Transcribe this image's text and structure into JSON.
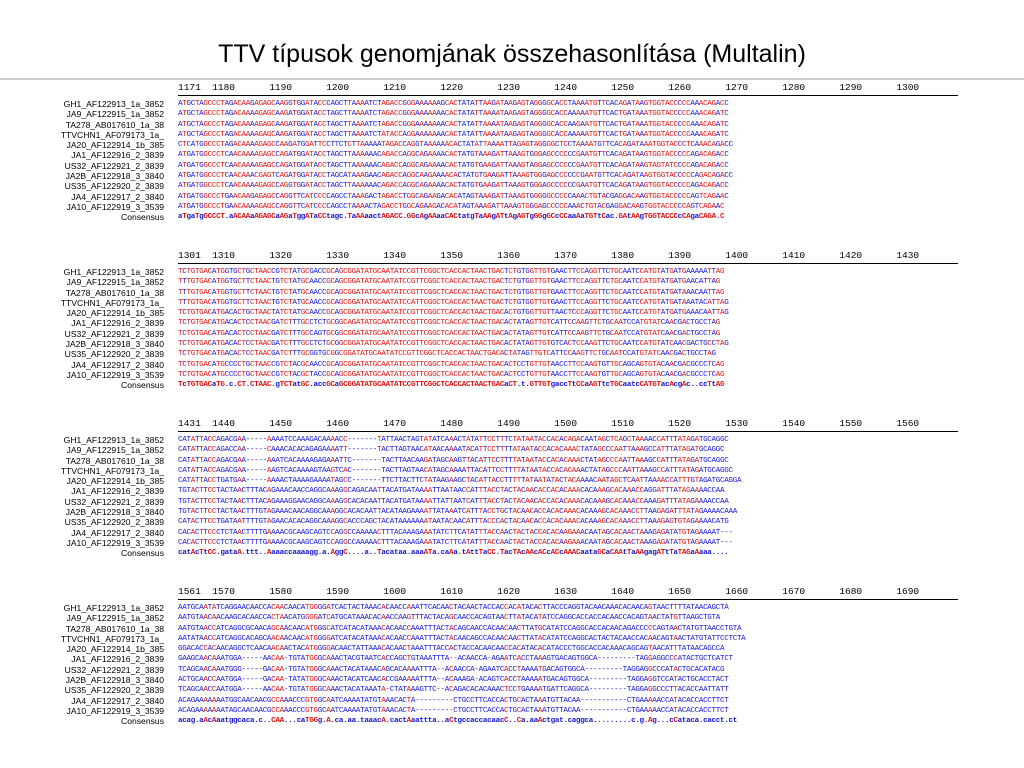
{
  "title": "TTV típusok genomjának összehasonlítása (Multalin)",
  "colors": {
    "consensus_high": "#e01010",
    "consensus_low": "#1515d6",
    "text": "#000000"
  },
  "sequence_names": [
    "GH1_AF122913_1a_3852",
    "JA9_AF122915_1a_3852",
    "TA278_AB017610_1a_38",
    "TTVCHN1_AF079173_1a_",
    "JA20_AF122914_1b_385",
    "JA1_AF122916_2_3839",
    "US32_AF122921_2_3839",
    "JA2B_AF122918_3_3840",
    "US35_AF122920_2_3839",
    "JA4_AF122917_2_3840",
    "JA10_AF122919_3_3539",
    "Consensus"
  ],
  "blocks": [
    {
      "numbers": "1171  1180      1190      1200      1210      1220      1230      1240      1250      1260      1270      1280      1290      1300",
      "rows": [
        "ATGCTAGCCCTAGACAAGAGAGCAAGGTGGATACCCAGCTTAAAATCTAGACCGGGAAAAAAGCACTATATTAAGATAAGAGTAGGGGCACCTAAAATGTTCACAGATAAGTGGTACCCCCAAACAGACC",
        "ATGCTAGCCCTAGACAAAAGAGCAAGATGGATACCTAGCTTAAAATCTAGACCGGGAAAAAAACACTATATTAAAATAAGAGTAGGGGCACCAAAAATGTTCACTGATAAATGGTACCCCCAAACAGATC",
        "ATGCTAGCCCTAGACAAAAGAGCAAGATGGATACCTAGCTTAAAATCTAGACCGGGAAAAAAACACTATATTAAAATAAGAGTAGGGGCACCAAGAATGTTCACTGATAAATGGTACCCCCAAACAGATC",
        "ATGCTAGCCCTAGACAAAAGAGCAAGATGGATACCTAGCTTAAAATCTATACCAGGAAAAAAACACTATATTAAAATAAGAGTAGGGGCACCAAAAATGTTCACTGATAAATGGTACCCCCAAACAGATC",
        "CTCATGGCCCTAGACAAAAGAGCCAAGATGGATTCCTTCTCTTAAAAATAGACCAGGTAAAAAACACTATATTAAAATTAGAGTAGGGGCTCCTAAAATGTTCACAGATAAATGGTACCCTCAAACAGACC",
        "ATGATGGCCCTCAACAAAAGAGCCAGATGGATACCTAGCTTAAAAAACAGACCAGGCAGAAAACACTATGTAAAGATTAAAGTGGGAGCCCCCCGAATGTTCACAGATAAGTGGTACCCCCAGACAGACC",
        "ATGATGGCCCTCAACAAAAGAGCCAGATGGATACCTAGCTTAAAAAACAGACCAGGCAGAAAACACTATGTGAAGATTAAAGTAGGAGCCCCCCGAATGTTCACAGATAAGTAGTATCCCCAGACAGACC",
        "ATGATGGCCCTCAACAAACGAGTCAGATGGATACCTAGCATAAAGAACAGACCAGGCAAGAAAACACTATGTGAAGATTAAAGTGGGAGCCCCCCGAATGTTCACAGATAAGTGGTACCCCCAGACAGACC",
        "ATGATGGCCCTCAACAAAAGAGCCAGGTGGATACCTAGCTTAAAAAACAGACCAGGCAGAAAACACTATGTGAAGATTAAAGTGGGAGCCCCCCGAATGTTCACAGATAAGTGGTACCCCCAGACAGACC",
        "ATGATGGCCCTGAACAAGAGAGCCAGGTTCATCCCCAGCCTAAAGACTAGACCTGGCAGAAGACACATAGTAAAGATTAAAGTGGGGGCCCCCAAACTGTACGAGGACAAGTGGTACCCCCAGTCAGAAC",
        "ATGATGGCCCTGAACAAAAGAGCCAGGTTCATCCCCAGCCTAAAACTAGACCTGGCAGAAGACACATAGTAAAGATTAAAGTGGGAGCCCCCAAACTGTACGAGGACAAGTGGTACCCCCAGTCAGAAC",
        "aTgaTgGCCCT.aACAAaAGAGCaAGaTggATaCCtagc.TaAAaactAGACC.GGcAgAAaaCACtatgTaAAgATtAgAGTgGGgGCcCCaaAaTGTtCac.GAtAAgTGGTACCCcCAgaCAGA.C"
      ]
    },
    {
      "numbers": "1301  1310      1320      1330      1340      1350      1360      1370      1380      1390      1400      1410      1420      1430",
      "rows": [
        "TCTGTGACATGGTGCTGCTAACCGTCTATGCGACCGCAGCGGATATGCAATATCCGTTCGGCTCACCACTAACTGACTCTGTGGTTGTGAACTTCCAGGTTCTGCAATCCATGTATGATGAAAAATTAG",
        "TTTGTGACATGGTGCTTCTAACTGTCTATGCAACCGCAGCGGATATGCAATATCCGTTCGGCTCACCACTAACTGACTCTGTGGTTGTGAACTTCCAGGTTCTGCAATCCATGTATGATGAACATTAG",
        "TTTGTGACATGGTGCTTCTAACTGTCTATGCAACCGCAGCGGATATGCAATATCCGTTCGGCTCACCACTAACTGACTCTGTGGTTGTGAACTTCCAGGTTCTGCAATCCATGTATGATAAACAATTAG",
        "TTTGTGACATGGTGCTTCTAACTGTCTATGCAACCGCAGCGGATATGCAATATCCATTCGGCTCACCACTAACTGACTCTGTGGTTGTGAACTTCCAGGTTCTGCAATCCATGTATGATAAATACATTAG",
        "TCTGTGACATGACACTGCTAACTATCTATGCAACCGCAGCGGATATGCAATATCCGTTCGGCTCACCACTAACTGACACTGTGGTTGTTAACTCCCAGGTTCTGCAATCCATGTATGATGAAACAATTAG",
        "TCTGTGACATGACACTCCTAACGATCTTTGCCTCTGCGGCAGATATGCAATATCCGTTCGGCTCACCACTAACTGACACTATAGTTGTCATTCCAAGTTCTGCAATCCATGTATCAACGACTGCCTAG",
        "TCTGTGACATGACACTCCTAACGATCTTTGCCAGTGCGGCGGATATGCAATATCCGTTCGGCTCACCACTAACTGACACTATAGTTGTCATTCCAAGTTCTGCAATCCATGTATCAACGACTGCCTAG",
        "TCTGTGACATGACACTCCTAACGATCTTTGCCTCTGCGGCGGATATGCAATATCCGTTCGGCTCACCACTAACTGACACTATAGTTGTGTCACTCCAAGTTCTGCAATCCATGTATCAACGACTGCCTAG",
        "TCTGTGACATGACACTCCTAACGATCTTTGCGGTGCGGCGGATATGCAATATCCGTTCGGCTCACCACTAACTGACACTATAGTTGTCATTCCAAGTTCTGCAATCCATGTATCAACGACTGCCTAG",
        "TCTGTGACATGCCCCTGCTAACCGTCTACGCAACCGCAGCGGATATGCAATATCCGTTCGGCTCACCACTAACTGACACTCCTGTTGTAACCTTCCAAGTGTTGCAGCAGTGTACAACGACGCCCTCAG",
        "TCTGTGACATGCCCCTGCTAACCGTCTACGCTACCGCAGCGGATATGCAATATCCGTTCGGCTCACCACTAACTGACACTCCTGTTGTAACCTTCCAAGTGTTGCAGCAGTGTACAACGACGCCCTCAG",
        "TcTGTGACaTG.c.CT.CTAAC.gTCTatGC.accGCaGCGGATATGCAATATCCGTTCGGCTCACCACTAACTGACaCT.t.GTTGTgaccTtCCaAGTtcTGCaatcCATGTacAcgAc..ccTtAG"
      ]
    },
    {
      "numbers": "1431  1440      1450      1460      1470      1480      1490      1500      1510      1520      1530      1540      1550      1560",
      "rows": [
        "CATATTACCAGACGAA-----AAAATCCAAAGACAAAACC-------TATTAACTAGTATATCAAACTATATTCCTTTCTATAATACCACACAGACAATAGCTCAGCTAAAACCATTTATAGATGCAGGC",
        "CATATTACCAGACCAA-----CAAACACACAGAGAAAATT-------TACTTAGTAACATAACAAAATACATTCCTTTTATAATACCACACAAACTATAGCCCAATTAAAGCCATTTATAGATGCAGGC",
        "CATATTACCAGACGAA-----AAATCACAAAAGAGAAATTC-------TACTTAACAAGATAGCAAGTTACATTCCTTTTATAATACCACACAAACTATAGCCCAATTAAAGCCATTTATAGATGCAGGC",
        "CATATTACCAGACGAA-----AAGTCACAAAAGTAAGTCAC-------TACTTAGTAACATAGCAAAATTACATTCCTTTTATAATACCACACAAACTATAGCCCAATTAAAGCCATTTATAGATGCAGGC",
        "CATATTACCTGATGAA-----AAAACTAAAAGAAAATAGCC-------TTCTTACTTCTATAAGAAGCTACATTACCTTTTTATAATATACTACAAAACAATAGCTCAATTAAAACCATTTGTAGATGCAGGA",
        "TGTACTTCCTACTAACTTTACAGAAACAACCAGGCAAAGGCAGACAATTACATGATAAAATTAATAACCATTTACCTACTACAACACCACACAAACACAAAGCACAAACCAGGATTTATAGAAAACCAA",
        "TGTACTTCCTACTAACTTTACAGAAAGGAACAGGCAAAGGCACACAATTACATGATAAAATTATTAATCATTTACCTACTACAACACCACACAAACACAAAGCACAAACCAAAGATTTATAGAAAACCAA",
        "TGTACTTCCTACTAACTTTGTAGAAACAACAGGCAAAGGCACACAATTACATAAGAAAATTATAAATCATTTACCTGCTACAACACCACACAAACACAAAGCACAAACCTTAAGAGATTTATAGAAAACAAA",
        "CATACTTCCTGATAATTTTGTAGAACACACAGGCAAAGGCACCCAGCTACATAAAAAAATAATACAACATTTACCCACTACAACACCACACAAACACAAAGCACAAACCTTAAAGAGTGTAGAAAACATG",
        "CACACTTCCCTCTAACTTTTGAAAACGCAAGCAGTCCAGGCCAAAAACTTTACAAAGAAATATCTTCATATTTACCAACTACTACCACACAAGAAACAATAGCACAACTAAAGAGATATGTAGAAAAT---",
        "CACACTTCCCTCTAACTTTTGAAAACGCAAGCAGTCCAGGCCAAAAACTTTACAAAGAAATATCTTCATATTTACCAACTACTACCACACAAGAAACAATAGCACAACTAAAGAGATATGTAGAAAAT---",
        "catAcTtCC.gataA.ttt..Aaaaccaaaagg.a.AggC....a..Tacataa.aaaATa.caAa.tAttTaCC.TacTAcAAcACcACcAAACaataGCaCAAtTaAAgagATtTaTAGaAaaa...."
      ]
    },
    {
      "numbers": "1561  1570      1580      1590      1600      1610      1620      1630      1640      1650      1660      1670      1680      1690",
      "rows": [
        "AATGCAATATCAGGAACAACCACAACAACATGGGGATCACTACTAAACACAACCAAATTCACAACTACAACTACCACCACATACACTTACCCAGGTACAACAAACACAACAGTAACTTTTATAACAGCTA",
        "AATGTAACAACAAGCACAACCACTAACATGGGGATCATGCATAAACACAACCAAGTTTACTACAGCAACCACAGTAACTTATACATATCCAGGCACCACCACAACCACAGTAACTATGTTAAGCTGTA",
        "AATGTAACCATCAGGCGCAACAGCAACAACATGGGCATCATACATAAACACAACCAAATTTACTACAGCAACCACAACAACTTATGCATATCCAGGCACCACAACAGACCCCCAGTAACTATGTTAACCTGTA",
        "AATATAACCATCAGGCACAGCAACAACAACATGGGGATCATACATAAACACAACCAAATTTACTACAACAGCCACAACAACTTATACATATCCAGGCACTACTACAACCACAACAGTAACTATGTATTCCTCTA",
        "GGACACCACAACAGGCTCAACAACAACTACATGGGGACAACTATTAAACACAACTAAATTTACCACTACCACAACAACCACATACACATACCCTGGCACCACAAACAGCAGTAACATTTATAACAGCCA",
        "GAAGCAACAAATGGA-----AACAA-TGTATGGGCAAACTACGTAATCACCAGCTGTAAATTTA--ACAACCA-AGAATCACCTAAAGTGACAGTGGCA---------TAGGAGGCCCATACTGCTCATCT",
        "TCAGCAACAAATGGG-----GACAA-TGTATGGGCAAACTACATAAACAGCACAAAATTTA--ACAACCA-AGAATCACCTAAAATGACAGTGGCA---------TAGGAGGCCCATACTGCACATACG",
        "ACTGCAACCAATGGA-----GACAA-TATATGGGCAAACTACATCAACACCGAAAAATTTA--ACAAAGA-ACAGTCACCTAAAAATGACAGTGGCA---------TAGGAGGTCCATACTGCACCTACT",
        "TCAGCAACCAATGGA-----AACAA-TGTATGGGCAAACTACATAAATA-CTATAAAGTTC--ACAGACACACAAACTCCTGAAAATGATTCAGGCA---------TAGGAGGCCCTTACACCAATTATT",
        "ACAGAAAAAAATGGCAACAACGCCAAACCCGTGGCAATCAAAATATGTAAACACTA---------CTGCCTTCACCACTGCACTAAATGTTACAA-----------CTGAAAAACCATACACCACCTTCT",
        "ACAGAAAAAAATAGCAACAACGCCAAACCCGTGGCAATCAAAATATGTAAACACTA---------CTGCCTTCACCACTGCACTAAATGTTACAA-----------CTGAAAAACCATACACCACCTTCT",
        "acag.aAcAaatggcaca.c..CAA...caTGGg.A.ca.aa.taaacA.cactAaattta..aCtgccaccacaacC..Ca.aaActgat.caggca.........c.g.Ag...cCataca.cacct.ct"
      ]
    }
  ]
}
